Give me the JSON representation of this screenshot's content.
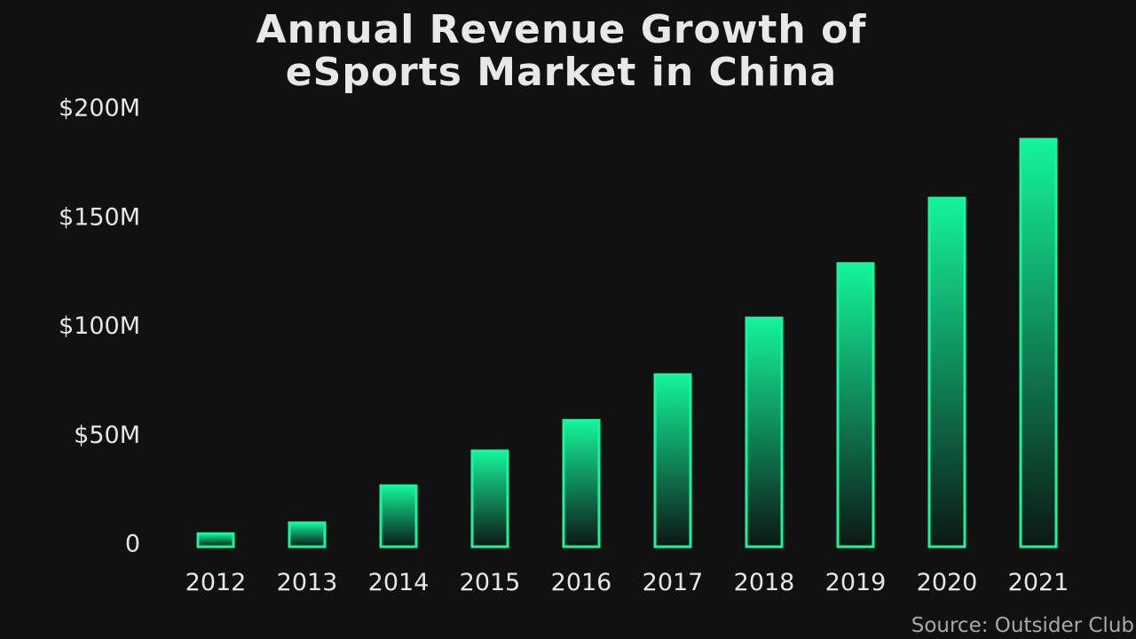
{
  "title_lines": [
    "Annual Revenue Growth of",
    "eSports Market in China"
  ],
  "source": "Source: Outsider Club",
  "colors": {
    "background": "#111111",
    "bar_top": "#14f59a",
    "bar_bottom": "#0b1714",
    "bar_stroke": "#19f59d",
    "text": "#e6e6e6"
  },
  "chart_data": {
    "type": "bar",
    "title": "Annual Revenue Growth of eSports Market in China",
    "categories": [
      "2012",
      "2013",
      "2014",
      "2015",
      "2016",
      "2017",
      "2018",
      "2019",
      "2020",
      "2021"
    ],
    "values": [
      6,
      11,
      28,
      44,
      58,
      79,
      105,
      130,
      160,
      187
    ],
    "ylim": [
      0,
      200
    ],
    "yticks": [
      0,
      50,
      100,
      150,
      200
    ],
    "ytick_labels": [
      "0",
      "$50M",
      "$100M",
      "$150M",
      "$200M"
    ],
    "xlabel": "",
    "ylabel": "",
    "grid": false,
    "legend": "none"
  }
}
